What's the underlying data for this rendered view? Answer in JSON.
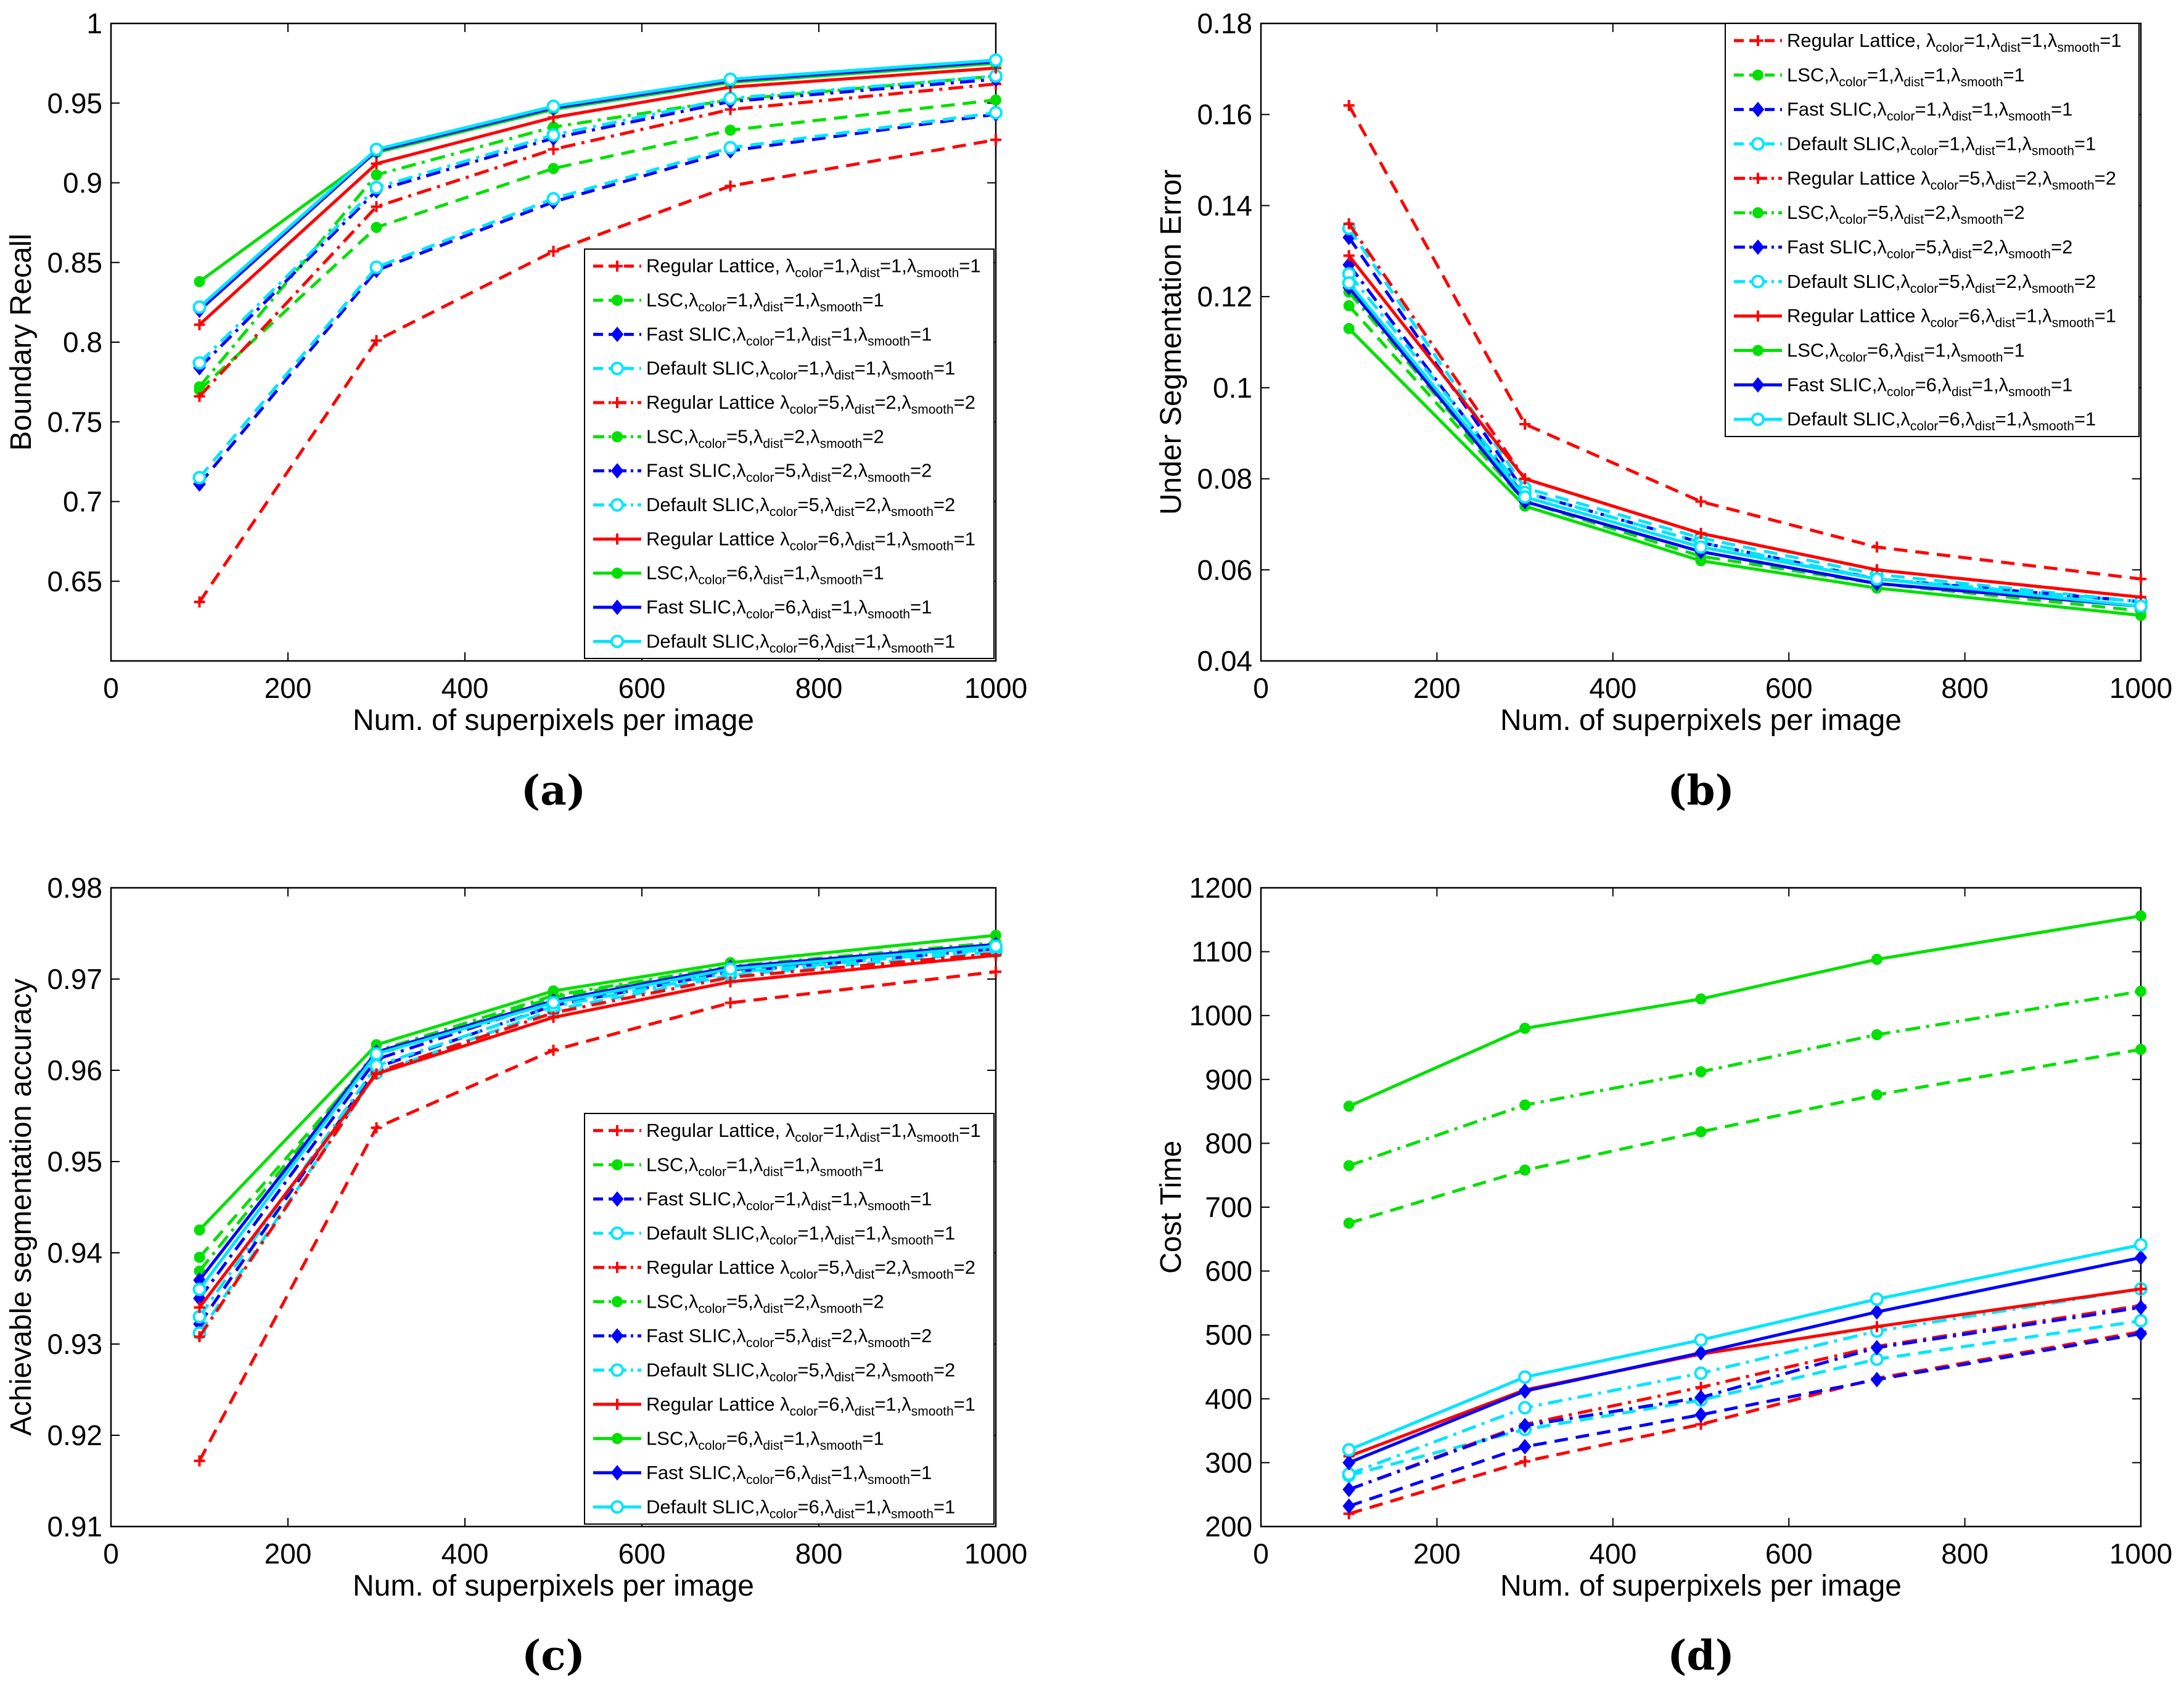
{
  "x_values": [
    100,
    300,
    500,
    700,
    1000
  ],
  "series_styles": [
    {
      "name": "Regular Lattice, λcolor=1,λdist=1,λsmooth=1",
      "color": "#ff0000",
      "dash": "dashed",
      "marker": "plus"
    },
    {
      "name": "LSC,λcolor=1,λdist=1,λsmooth=1",
      "color": "#00e000",
      "dash": "dashed",
      "marker": "dot"
    },
    {
      "name": "Fast SLIC,λcolor=1,λdist=1,λsmooth=1",
      "color": "#0000ff",
      "dash": "dashed",
      "marker": "diamond"
    },
    {
      "name": "Default SLIC,λcolor=1,λdist=1,λsmooth=1",
      "color": "#00e5ff",
      "dash": "dashed",
      "marker": "circle"
    },
    {
      "name": "Regular Lattice λcolor=5,λdist=2,λsmooth=2",
      "color": "#ff0000",
      "dash": "dashdot",
      "marker": "plus"
    },
    {
      "name": "LSC,λcolor=5,λdist=2,λsmooth=2",
      "color": "#00e000",
      "dash": "dashdot",
      "marker": "dot"
    },
    {
      "name": "Fast SLIC,λcolor=5,λdist=2,λsmooth=2",
      "color": "#0000ff",
      "dash": "dashdot",
      "marker": "diamond"
    },
    {
      "name": "Default SLIC,λcolor=5,λdist=2,λsmooth=2",
      "color": "#00e5ff",
      "dash": "dashdot",
      "marker": "circle"
    },
    {
      "name": "Regular Lattice λcolor=6,λdist=1,λsmooth=1",
      "color": "#ff0000",
      "dash": "solid",
      "marker": "plus"
    },
    {
      "name": "LSC,λcolor=6,λdist=1,λsmooth=1",
      "color": "#00e000",
      "dash": "solid",
      "marker": "dot"
    },
    {
      "name": "Fast SLIC,λcolor=6,λdist=1,λsmooth=1",
      "color": "#0000ff",
      "dash": "solid",
      "marker": "diamond"
    },
    {
      "name": "Default SLIC,λcolor=6,λdist=1,λsmooth=1",
      "color": "#00e5ff",
      "dash": "solid",
      "marker": "circle"
    }
  ],
  "legend_entries": [
    {
      "pre": "Regular Lattice, λ",
      "segs": [
        [
          "color",
          "=1,λ"
        ],
        [
          "dist",
          "=1,λ"
        ],
        [
          "smooth",
          "=1"
        ]
      ]
    },
    {
      "pre": "LSC,λ",
      "segs": [
        [
          "color",
          "=1,λ"
        ],
        [
          "dist",
          "=1,λ"
        ],
        [
          "smooth",
          "=1"
        ]
      ]
    },
    {
      "pre": "Fast SLIC,λ",
      "segs": [
        [
          "color",
          "=1,λ"
        ],
        [
          "dist",
          "=1,λ"
        ],
        [
          "smooth",
          "=1"
        ]
      ]
    },
    {
      "pre": "Default SLIC,λ",
      "segs": [
        [
          "color",
          "=1,λ"
        ],
        [
          "dist",
          "=1,λ"
        ],
        [
          "smooth",
          "=1"
        ]
      ]
    },
    {
      "pre": "Regular Lattice λ",
      "segs": [
        [
          "color",
          "=5,λ"
        ],
        [
          "dist",
          "=2,λ"
        ],
        [
          "smooth",
          "=2"
        ]
      ]
    },
    {
      "pre": "LSC,λ",
      "segs": [
        [
          "color",
          "=5,λ"
        ],
        [
          "dist",
          "=2,λ"
        ],
        [
          "smooth",
          "=2"
        ]
      ]
    },
    {
      "pre": "Fast SLIC,λ",
      "segs": [
        [
          "color",
          "=5,λ"
        ],
        [
          "dist",
          "=2,λ"
        ],
        [
          "smooth",
          "=2"
        ]
      ]
    },
    {
      "pre": "Default SLIC,λ",
      "segs": [
        [
          "color",
          "=5,λ"
        ],
        [
          "dist",
          "=2,λ"
        ],
        [
          "smooth",
          "=2"
        ]
      ]
    },
    {
      "pre": "Regular Lattice λ",
      "segs": [
        [
          "color",
          "=6,λ"
        ],
        [
          "dist",
          "=1,λ"
        ],
        [
          "smooth",
          "=1"
        ]
      ]
    },
    {
      "pre": "LSC,λ",
      "segs": [
        [
          "color",
          "=6,λ"
        ],
        [
          "dist",
          "=1,λ"
        ],
        [
          "smooth",
          "=1"
        ]
      ]
    },
    {
      "pre": "Fast SLIC,λ",
      "segs": [
        [
          "color",
          "=6,λ"
        ],
        [
          "dist",
          "=1,λ"
        ],
        [
          "smooth",
          "=1"
        ]
      ]
    },
    {
      "pre": "Default SLIC,λ",
      "segs": [
        [
          "color",
          "=6,λ"
        ],
        [
          "dist",
          "=1,λ"
        ],
        [
          "smooth",
          "=1"
        ]
      ]
    }
  ],
  "chart_data": [
    {
      "id": "a",
      "label": "(a)",
      "type": "line",
      "xlabel": "Num. of superpixels per image",
      "ylabel": "Boundary Recall",
      "xlim": [
        0,
        1000
      ],
      "ylim": [
        0.6,
        1
      ],
      "xticks": [
        0,
        200,
        400,
        600,
        800,
        1000
      ],
      "yticks": [
        0.65,
        0.7,
        0.75,
        0.8,
        0.85,
        0.9,
        0.95,
        1
      ],
      "ytick_labels": [
        "0.65",
        "0.7",
        "0.75",
        "0.8",
        "0.85",
        "0.9",
        "0.95",
        "1"
      ],
      "legend": "bottom-right",
      "series": [
        {
          "name": "Regular Lattice, λcolor=1,λdist=1,λsmooth=1",
          "values": [
            0.637,
            0.801,
            0.857,
            0.898,
            0.927
          ]
        },
        {
          "name": "LSC,λcolor=1,λdist=1,λsmooth=1",
          "values": [
            0.77,
            0.872,
            0.909,
            0.933,
            0.952
          ]
        },
        {
          "name": "Fast SLIC,λcolor=1,λdist=1,λsmooth=1",
          "values": [
            0.711,
            0.845,
            0.888,
            0.92,
            0.943
          ]
        },
        {
          "name": "Default SLIC,λcolor=1,λdist=1,λsmooth=1",
          "values": [
            0.715,
            0.847,
            0.89,
            0.922,
            0.944
          ]
        },
        {
          "name": "Regular Lattice λcolor=5,λdist=2,λsmooth=2",
          "values": [
            0.766,
            0.885,
            0.921,
            0.946,
            0.962
          ]
        },
        {
          "name": "LSC,λcolor=5,λdist=2,λsmooth=2",
          "values": [
            0.772,
            0.905,
            0.935,
            0.952,
            0.967
          ]
        },
        {
          "name": "Fast SLIC,λcolor=5,λdist=2,λsmooth=2",
          "values": [
            0.784,
            0.895,
            0.928,
            0.951,
            0.965
          ]
        },
        {
          "name": "Default SLIC,λcolor=5,λdist=2,λsmooth=2",
          "values": [
            0.787,
            0.897,
            0.93,
            0.953,
            0.967
          ]
        },
        {
          "name": "Regular Lattice λcolor=6,λdist=1,λsmooth=1",
          "values": [
            0.811,
            0.912,
            0.941,
            0.96,
            0.972
          ]
        },
        {
          "name": "LSC,λcolor=6,λdist=1,λsmooth=1",
          "values": [
            0.838,
            0.919,
            0.946,
            0.963,
            0.975
          ]
        },
        {
          "name": "Fast SLIC,λcolor=6,λdist=1,λsmooth=1",
          "values": [
            0.82,
            0.92,
            0.947,
            0.964,
            0.976
          ]
        },
        {
          "name": "Default SLIC,λcolor=6,λdist=1,λsmooth=1",
          "values": [
            0.822,
            0.921,
            0.948,
            0.965,
            0.977
          ]
        }
      ]
    },
    {
      "id": "b",
      "label": "(b)",
      "type": "line",
      "xlabel": "Num. of superpixels per image",
      "ylabel": "Under Segmentation Error",
      "xlim": [
        0,
        1000
      ],
      "ylim": [
        0.04,
        0.18
      ],
      "xticks": [
        0,
        200,
        400,
        600,
        800,
        1000
      ],
      "yticks": [
        0.04,
        0.06,
        0.08,
        0.1,
        0.12,
        0.14,
        0.16,
        0.18
      ],
      "ytick_labels": [
        "0.04",
        "0.06",
        "0.08",
        "0.1",
        "0.12",
        "0.14",
        "0.16",
        "0.18"
      ],
      "legend": "top-right",
      "series": [
        {
          "name": "Regular Lattice, λcolor=1,λdist=1,λsmooth=1",
          "values": [
            0.162,
            0.092,
            0.075,
            0.065,
            0.058
          ]
        },
        {
          "name": "LSC,λcolor=1,λdist=1,λsmooth=1",
          "values": [
            0.118,
            0.075,
            0.063,
            0.057,
            0.051
          ]
        },
        {
          "name": "Fast SLIC,λcolor=1,λdist=1,λsmooth=1",
          "values": [
            0.133,
            0.077,
            0.066,
            0.058,
            0.053
          ]
        },
        {
          "name": "Default SLIC,λcolor=1,λdist=1,λsmooth=1",
          "values": [
            0.135,
            0.078,
            0.067,
            0.059,
            0.053
          ]
        },
        {
          "name": "Regular Lattice λcolor=5,λdist=2,λsmooth=2",
          "values": [
            0.136,
            0.08,
            0.068,
            0.06,
            0.054
          ]
        },
        {
          "name": "LSC,λcolor=5,λdist=2,λsmooth=2",
          "values": [
            0.121,
            0.075,
            0.064,
            0.057,
            0.052
          ]
        },
        {
          "name": "Fast SLIC,λcolor=5,λdist=2,λsmooth=2",
          "values": [
            0.127,
            0.076,
            0.065,
            0.058,
            0.053
          ]
        },
        {
          "name": "Default SLIC,λcolor=5,λdist=2,λsmooth=2",
          "values": [
            0.125,
            0.077,
            0.066,
            0.058,
            0.053
          ]
        },
        {
          "name": "Regular Lattice λcolor=6,λdist=1,λsmooth=1",
          "values": [
            0.129,
            0.08,
            0.068,
            0.06,
            0.054
          ]
        },
        {
          "name": "LSC,λcolor=6,λdist=1,λsmooth=1",
          "values": [
            0.113,
            0.074,
            0.062,
            0.056,
            0.05
          ]
        },
        {
          "name": "Fast SLIC,λcolor=6,λdist=1,λsmooth=1",
          "values": [
            0.122,
            0.075,
            0.064,
            0.057,
            0.052
          ]
        },
        {
          "name": "Default SLIC,λcolor=6,λdist=1,λsmooth=1",
          "values": [
            0.123,
            0.076,
            0.065,
            0.058,
            0.052
          ]
        }
      ]
    },
    {
      "id": "c",
      "label": "(c)",
      "type": "line",
      "xlabel": "Num. of superpixels per image",
      "ylabel": "Achievable segmentation accuracy",
      "xlim": [
        0,
        1000
      ],
      "ylim": [
        0.91,
        0.98
      ],
      "xticks": [
        0,
        200,
        400,
        600,
        800,
        1000
      ],
      "yticks": [
        0.91,
        0.92,
        0.93,
        0.94,
        0.95,
        0.96,
        0.97,
        0.98
      ],
      "ytick_labels": [
        "0.91",
        "0.92",
        "0.93",
        "0.94",
        "0.95",
        "0.96",
        "0.97",
        "0.98"
      ],
      "legend": "bottom-right",
      "series": [
        {
          "name": "Regular Lattice, λcolor=1,λdist=1,λsmooth=1",
          "values": [
            0.9172,
            0.9537,
            0.9622,
            0.9674,
            0.9708
          ]
        },
        {
          "name": "LSC,λcolor=1,λdist=1,λsmooth=1",
          "values": [
            0.9395,
            0.9617,
            0.968,
            0.9712,
            0.9737
          ]
        },
        {
          "name": "Fast SLIC,λcolor=1,λdist=1,λsmooth=1",
          "values": [
            0.9322,
            0.9603,
            0.9671,
            0.9708,
            0.9733
          ]
        },
        {
          "name": "Default SLIC,λcolor=1,λdist=1,λsmooth=1",
          "values": [
            0.9312,
            0.9597,
            0.9666,
            0.9704,
            0.973
          ]
        },
        {
          "name": "Regular Lattice λcolor=5,λdist=2,λsmooth=2",
          "values": [
            0.9308,
            0.9598,
            0.9663,
            0.9702,
            0.9728
          ]
        },
        {
          "name": "LSC,λcolor=5,λdist=2,λsmooth=2",
          "values": [
            0.938,
            0.9621,
            0.9682,
            0.9714,
            0.974
          ]
        },
        {
          "name": "Fast SLIC,λcolor=5,λdist=2,λsmooth=2",
          "values": [
            0.935,
            0.9612,
            0.9676,
            0.971,
            0.9736
          ]
        },
        {
          "name": "Default SLIC,λcolor=5,λdist=2,λsmooth=2",
          "values": [
            0.933,
            0.9605,
            0.967,
            0.9707,
            0.9733
          ]
        },
        {
          "name": "Regular Lattice λcolor=6,λdist=1,λsmooth=1",
          "values": [
            0.934,
            0.9596,
            0.9658,
            0.9697,
            0.9726
          ]
        },
        {
          "name": "LSC,λcolor=6,λdist=1,λsmooth=1",
          "values": [
            0.9425,
            0.9628,
            0.9687,
            0.9718,
            0.9748
          ]
        },
        {
          "name": "Fast SLIC,λcolor=6,λdist=1,λsmooth=1",
          "values": [
            0.937,
            0.962,
            0.9676,
            0.9713,
            0.9738
          ]
        },
        {
          "name": "Default SLIC,λcolor=6,λdist=1,λsmooth=1",
          "values": [
            0.936,
            0.9618,
            0.9674,
            0.9711,
            0.9736
          ]
        }
      ]
    },
    {
      "id": "d",
      "label": "(d)",
      "type": "line",
      "xlabel": "Num. of superpixels per image",
      "ylabel": "Cost Time",
      "xlim": [
        0,
        1000
      ],
      "ylim": [
        200,
        1200
      ],
      "xticks": [
        0,
        200,
        400,
        600,
        800,
        1000
      ],
      "yticks": [
        200,
        300,
        400,
        500,
        600,
        700,
        800,
        900,
        1000,
        1100,
        1200
      ],
      "ytick_labels": [
        "200",
        "300",
        "400",
        "500",
        "600",
        "700",
        "800",
        "900",
        "1000",
        "1100",
        "1200"
      ],
      "legend": "none",
      "series": [
        {
          "name": "Regular Lattice, λcolor=1,λdist=1,λsmooth=1",
          "values": [
            220,
            302,
            360,
            432,
            505
          ]
        },
        {
          "name": "LSC,λcolor=1,λdist=1,λsmooth=1",
          "values": [
            675,
            758,
            818,
            876,
            947
          ]
        },
        {
          "name": "Fast SLIC,λcolor=1,λdist=1,λsmooth=1",
          "values": [
            232,
            325,
            375,
            430,
            502
          ]
        },
        {
          "name": "Default SLIC,λcolor=1,λdist=1,λsmooth=1",
          "values": [
            280,
            352,
            398,
            462,
            522
          ]
        },
        {
          "name": "Regular Lattice λcolor=5,λdist=2,λsmooth=2",
          "values": [
            258,
            360,
            418,
            482,
            546
          ]
        },
        {
          "name": "LSC,λcolor=5,λdist=2,λsmooth=2",
          "values": [
            765,
            860,
            912,
            970,
            1038
          ]
        },
        {
          "name": "Fast SLIC,λcolor=5,λdist=2,λsmooth=2",
          "values": [
            258,
            358,
            402,
            480,
            543
          ]
        },
        {
          "name": "Default SLIC,λcolor=5,λdist=2,λsmooth=2",
          "values": [
            282,
            386,
            440,
            506,
            572
          ]
        },
        {
          "name": "Regular Lattice λcolor=6,λdist=1,λsmooth=1",
          "values": [
            310,
            414,
            470,
            513,
            572
          ]
        },
        {
          "name": "LSC,λcolor=6,λdist=1,λsmooth=1",
          "values": [
            858,
            980,
            1026,
            1088,
            1156
          ]
        },
        {
          "name": "Fast SLIC,λcolor=6,λdist=1,λsmooth=1",
          "values": [
            300,
            412,
            472,
            536,
            621
          ]
        },
        {
          "name": "Default SLIC,λcolor=6,λdist=1,λsmooth=1",
          "values": [
            320,
            434,
            492,
            556,
            641
          ]
        }
      ]
    }
  ]
}
